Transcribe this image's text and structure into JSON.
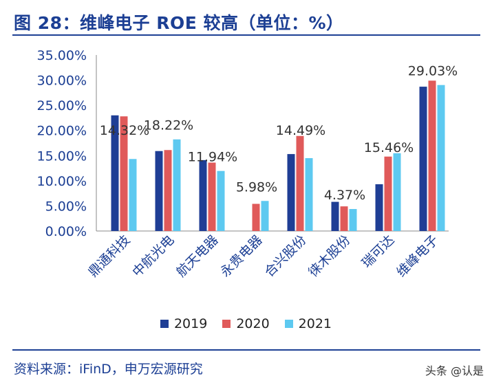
{
  "header": {
    "title": "图 28：维峰电子 ROE 较高（单位：%）"
  },
  "footer": {
    "source": "资料来源：iFinD，申万宏源研究",
    "watermark": "头条 @认是"
  },
  "colors": {
    "title": "#1c3f94",
    "series_2019": "#1f3e95",
    "series_2020": "#e05a5a",
    "series_2021": "#5dc9f0"
  },
  "chart_data": {
    "type": "bar",
    "title": "",
    "xlabel": "",
    "ylabel": "",
    "ylim": [
      0,
      35
    ],
    "yticks": [
      "0.00%",
      "5.00%",
      "10.00%",
      "15.00%",
      "20.00%",
      "25.00%",
      "30.00%",
      "35.00%"
    ],
    "categories": [
      "鼎通科技",
      "中航光电",
      "航天电器",
      "永贵电器",
      "合兴股份",
      "徕木股份",
      "瑞可达",
      "维峰电子"
    ],
    "series": [
      {
        "name": "2019",
        "color": "#1f3e95",
        "values": [
          23.0,
          15.9,
          14.1,
          null,
          15.3,
          5.8,
          9.3,
          28.7
        ]
      },
      {
        "name": "2020",
        "color": "#e05a5a",
        "values": [
          22.8,
          16.1,
          13.6,
          5.4,
          18.9,
          4.9,
          14.8,
          29.9
        ]
      },
      {
        "name": "2021",
        "color": "#5dc9f0",
        "values": [
          14.32,
          18.22,
          11.94,
          5.98,
          14.49,
          4.37,
          15.46,
          29.03
        ]
      }
    ],
    "data_labels": [
      "14.32%",
      "18.22%",
      "11.94%",
      "5.98%",
      "14.49%",
      "4.37%",
      "15.46%",
      "29.03%"
    ],
    "legend": "bottom"
  }
}
